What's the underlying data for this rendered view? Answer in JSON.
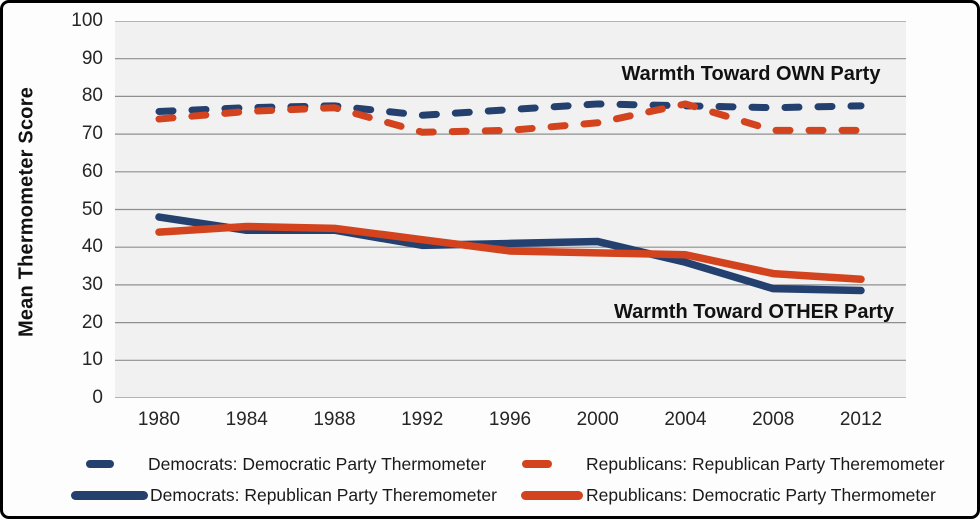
{
  "colors": {
    "navy": "#24406f",
    "red": "#d2431e",
    "plot_background": "#f1f1f1",
    "gridline": "#8f8f8f",
    "text": "#1a1a1a"
  },
  "chart_data": {
    "type": "line",
    "x": [
      1980,
      1984,
      1988,
      1992,
      1996,
      2000,
      2004,
      2008,
      2012
    ],
    "x_tick_labels": [
      "1980",
      "1984",
      "1988",
      "1992",
      "1996",
      "2000",
      "2004",
      "2008",
      "2012"
    ],
    "ylabel": "Mean Thermometer Score",
    "xlabel": "",
    "ylim": [
      0,
      100
    ],
    "y_ticks": [
      0,
      10,
      20,
      30,
      40,
      50,
      60,
      70,
      80,
      90,
      100
    ],
    "grid": "horizontal",
    "legend_position": "bottom",
    "series": [
      {
        "name": "Democrats: Democratic Party Thermometer",
        "color_key": "navy",
        "style": "dashed",
        "values": [
          76,
          77,
          77.5,
          75,
          76.5,
          78,
          77.5,
          77,
          77.5
        ]
      },
      {
        "name": "Democrats: Republican Party Theremometer",
        "color_key": "navy",
        "style": "solid",
        "values": [
          48,
          44.5,
          44.5,
          40.5,
          41,
          41.5,
          36,
          29,
          28.5
        ]
      },
      {
        "name": "Republicans: Republican Party Theremometer",
        "color_key": "red",
        "style": "dashed",
        "values": [
          74,
          76,
          77,
          70.5,
          71,
          73,
          78,
          71,
          71
        ]
      },
      {
        "name": "Republicans: Democratic Party Thermometer",
        "color_key": "red",
        "style": "solid",
        "values": [
          44,
          45.5,
          45,
          42,
          39,
          38.5,
          38,
          33,
          31.5
        ]
      }
    ],
    "annotations": [
      {
        "text": "Warmth Toward OWN Party"
      },
      {
        "text": "Warmth Toward OTHER Party"
      }
    ]
  },
  "legend": {
    "items": [
      {
        "label": "Democrats: Democratic Party Thermometer",
        "swatch": "dashed-navy"
      },
      {
        "label": "Republicans: Republican Party Theremometer",
        "swatch": "dashed-red"
      },
      {
        "label": "Democrats: Republican Party Theremometer",
        "swatch": "solid-navy"
      },
      {
        "label": "Republicans: Democratic Party Thermometer",
        "swatch": "solid-red"
      }
    ]
  }
}
